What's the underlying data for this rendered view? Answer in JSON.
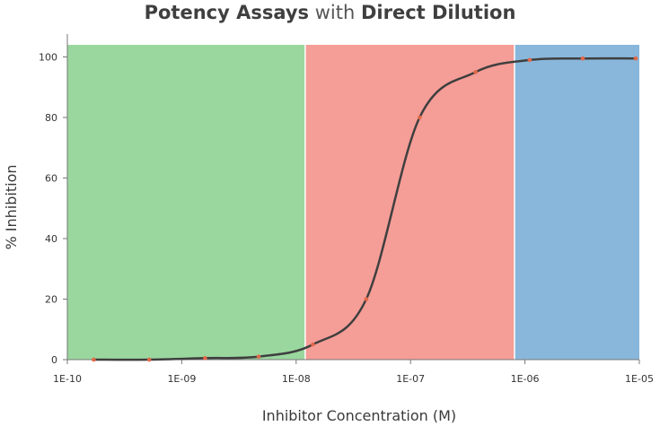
{
  "title": {
    "part1": "Potency Assays",
    "part2": " with ",
    "part3": "Direct Dilution"
  },
  "chart_data": {
    "type": "line",
    "title": "Potency Assays with Direct Dilution",
    "xlabel": "Inhibitor Concentration (M)",
    "ylabel": "% Inhibition",
    "x_scale": "log",
    "xlim": [
      1e-10,
      1e-05
    ],
    "ylim": [
      0,
      104
    ],
    "x_ticks": [
      1e-10,
      1e-09,
      1e-08,
      1e-07,
      1e-06,
      1e-05
    ],
    "x_tick_labels": [
      "1E-10",
      "1E-09",
      "1E-08",
      "1E-07",
      "1E-06",
      "1E-05"
    ],
    "y_ticks": [
      0,
      20,
      40,
      60,
      80,
      100
    ],
    "y_tick_labels": [
      "0",
      "20",
      "40",
      "60",
      "80",
      "100"
    ],
    "regions": [
      {
        "from": 1e-10,
        "to": 1.2e-08,
        "color": "#9ad79f"
      },
      {
        "from": 1.2e-08,
        "to": 8.1e-07,
        "color": "#f59d97"
      },
      {
        "from": 8.1e-07,
        "to": 1e-05,
        "color": "#88b7db"
      }
    ],
    "series": [
      {
        "color": "#3f3f3f",
        "point_color": "#e2684a",
        "x": [
          1.7e-10,
          5.2e-10,
          1.6e-09,
          4.7e-09,
          1.4e-08,
          4.1e-08,
          1.2e-07,
          3.7e-07,
          1.1e-06,
          3.2e-06,
          9.3e-06
        ],
        "y": [
          0,
          0,
          0.5,
          1,
          5,
          20,
          80,
          95,
          99,
          99.5,
          99.5
        ]
      }
    ],
    "grid": false
  }
}
